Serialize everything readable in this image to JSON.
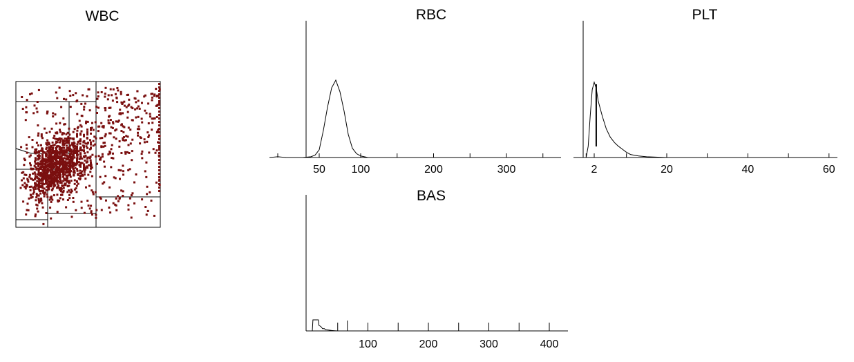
{
  "colors": {
    "scatter": "#7a0f0f",
    "line": "#000000",
    "background": "#ffffff"
  },
  "chart_data": [
    {
      "id": "wbc",
      "type": "scatter",
      "title": "WBC",
      "xlabel": "",
      "ylabel": "",
      "tick_labels": [],
      "grid": false,
      "note": "dense cluster of points with gating lines"
    },
    {
      "id": "rbc",
      "type": "line",
      "title": "RBC",
      "xlim": [
        0,
        360
      ],
      "tick_labels": [
        {
          "value": 50,
          "label": "50"
        },
        {
          "value": 100,
          "label": "100"
        },
        {
          "value": 200,
          "label": "200"
        },
        {
          "value": 300,
          "label": "300"
        }
      ],
      "minor_ticks": [
        0,
        150,
        250,
        350
      ],
      "x": [
        -10,
        0,
        10,
        20,
        30,
        40,
        45,
        50,
        55,
        60,
        65,
        70,
        75,
        80,
        85,
        90,
        95,
        100,
        105,
        110,
        120,
        130,
        150,
        200,
        300,
        360
      ],
      "y": [
        0,
        1,
        0,
        0,
        0,
        1,
        3,
        10,
        35,
        65,
        90,
        100,
        85,
        60,
        30,
        12,
        5,
        2,
        1,
        0,
        0,
        0,
        0,
        0,
        0,
        0
      ]
    },
    {
      "id": "plt",
      "type": "line",
      "title": "PLT",
      "xlim": [
        0,
        60
      ],
      "tick_labels": [
        {
          "value": 2,
          "label": "2"
        },
        {
          "value": 20,
          "label": "20"
        },
        {
          "value": 40,
          "label": "40"
        },
        {
          "value": 60,
          "label": "60"
        }
      ],
      "minor_ticks": [
        0,
        10,
        30,
        50
      ],
      "x": [
        0,
        0.5,
        1,
        1.5,
        2,
        2.5,
        3,
        4,
        5,
        6,
        7,
        8,
        9,
        10,
        11,
        12,
        13,
        15,
        20,
        30,
        40,
        60
      ],
      "y": [
        0,
        15,
        55,
        90,
        100,
        92,
        75,
        55,
        38,
        27,
        20,
        15,
        11,
        7,
        4,
        3,
        2,
        1,
        0,
        0,
        0,
        0
      ],
      "marker_x": 2.5
    },
    {
      "id": "bas",
      "type": "line",
      "title": "BAS",
      "xlim": [
        0,
        430
      ],
      "tick_labels": [
        {
          "value": 100,
          "label": "100"
        },
        {
          "value": 200,
          "label": "200"
        },
        {
          "value": 300,
          "label": "300"
        },
        {
          "value": 400,
          "label": "400"
        }
      ],
      "minor_ticks": [
        50,
        150,
        250,
        350
      ],
      "threshold_x": 66,
      "x": [
        0,
        8,
        9,
        18,
        19,
        22,
        25,
        28,
        30,
        35,
        40,
        45,
        50,
        100,
        200,
        300,
        430
      ],
      "y": [
        0,
        0,
        100,
        100,
        50,
        40,
        20,
        20,
        10,
        8,
        4,
        2,
        0,
        0,
        0,
        0,
        0
      ]
    }
  ]
}
